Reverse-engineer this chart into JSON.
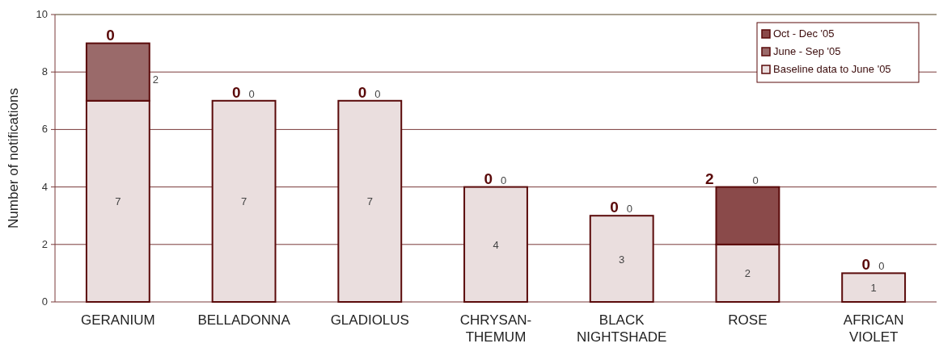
{
  "chart_data": {
    "type": "bar",
    "stacked": true,
    "ylabel": "Number of notifications",
    "categories": [
      "GERANIUM",
      "BELLADONNA",
      "GLADIOLUS",
      "CHRYSAN-THEMUM",
      "BLACK NIGHTSHADE",
      "ROSE",
      "AFRICAN VIOLET"
    ],
    "series": [
      {
        "name": "Baseline data to June '05",
        "color": "#eadede",
        "values": [
          7,
          7,
          7,
          4,
          3,
          2,
          1
        ]
      },
      {
        "name": "June - Sep '05",
        "color": "#9a6a6a",
        "values": [
          2,
          0,
          0,
          0,
          0,
          0,
          0
        ]
      },
      {
        "name": "Oct - Dec '05",
        "color": "#8a4a4a",
        "values": [
          0,
          0,
          0,
          0,
          0,
          2,
          0
        ]
      }
    ],
    "ylim": [
      0,
      10
    ],
    "yticks": [
      0,
      2,
      4,
      6,
      8,
      10
    ],
    "grid": "y",
    "legend": "top right",
    "data_labels": true
  }
}
